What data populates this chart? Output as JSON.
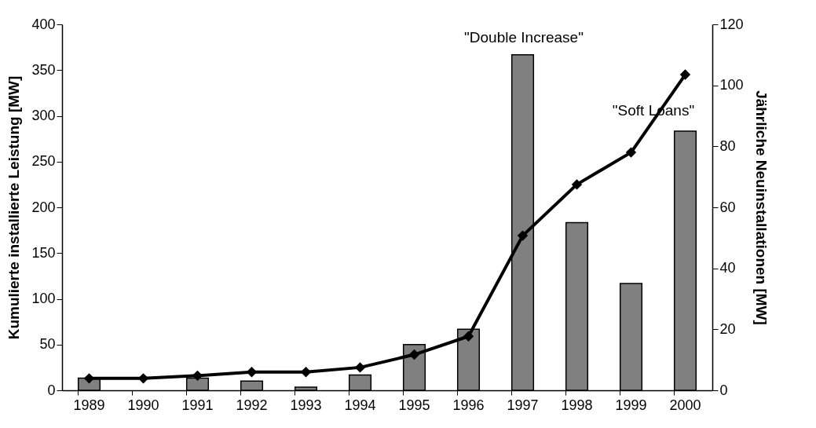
{
  "chart_data": {
    "type": "bar",
    "categories": [
      "1989",
      "1990",
      "1991",
      "1992",
      "1993",
      "1994",
      "1995",
      "1996",
      "1997",
      "1998",
      "1999",
      "2000"
    ],
    "series": [
      {
        "axis": "y2",
        "color": "#808080",
        "values": [
          4,
          0,
          4,
          3,
          1,
          5,
          15,
          20,
          110,
          55,
          35,
          85
        ]
      },
      {
        "type": "line",
        "axis": "y",
        "color": "#000000",
        "values": [
          13,
          13,
          16,
          20,
          20,
          25,
          39,
          59,
          169,
          225,
          260,
          345
        ]
      }
    ],
    "ylabel": "Kumulierte installierte Leistung [MW]",
    "y2label": "Jährliche Neuinstallationen [MW]",
    "ylim": [
      0,
      400
    ],
    "yticks": [
      0,
      50,
      100,
      150,
      200,
      250,
      300,
      350,
      400
    ],
    "y2lim": [
      0,
      120
    ],
    "y2ticks": [
      0,
      20,
      40,
      60,
      80,
      100,
      120
    ],
    "marker": "diamond",
    "line_style": "solid",
    "grid": false,
    "annotations": [
      "\"Double Increase\"",
      "\"Soft Loans\""
    ]
  }
}
